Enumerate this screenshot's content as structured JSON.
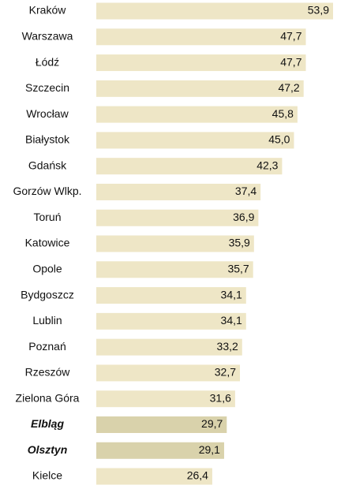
{
  "chart_data": {
    "type": "barh",
    "categories": [
      "Kraków",
      "Warszawa",
      "Łódź",
      "Szczecin",
      "Wrocław",
      "Białystok",
      "Gdańsk",
      "Gorzów Wlkp.",
      "Toruń",
      "Katowice",
      "Opole",
      "Bydgoszcz",
      "Lublin",
      "Poznań",
      "Rzeszów",
      "Zielona Góra",
      "Elbląg",
      "Olsztyn",
      "Kielce"
    ],
    "values": [
      53.9,
      47.7,
      47.7,
      47.2,
      45.8,
      45.0,
      42.3,
      37.4,
      36.9,
      35.9,
      35.7,
      34.1,
      34.1,
      33.2,
      32.7,
      31.6,
      29.7,
      29.1,
      26.4
    ],
    "value_labels": [
      "53,9",
      "47,7",
      "47,7",
      "47,2",
      "45,8",
      "45,0",
      "42,3",
      "37,4",
      "36,9",
      "35,9",
      "35,7",
      "34,1",
      "34,1",
      "33,2",
      "32,7",
      "31,6",
      "29,7",
      "29,1",
      "26,4"
    ],
    "colors": [
      "#eee6c6",
      "#eee6c6",
      "#eee6c6",
      "#eee6c6",
      "#eee6c6",
      "#eee6c6",
      "#eee6c6",
      "#eee6c6",
      "#eee6c6",
      "#eee6c6",
      "#eee6c6",
      "#eee6c6",
      "#eee6c6",
      "#eee6c6",
      "#eee6c6",
      "#eee6c6",
      "#d9d2ab",
      "#d9d2ab",
      "#eee6c6"
    ],
    "emphasized": [
      false,
      false,
      false,
      false,
      false,
      false,
      false,
      false,
      false,
      false,
      false,
      false,
      false,
      false,
      false,
      false,
      true,
      true,
      false
    ]
  }
}
